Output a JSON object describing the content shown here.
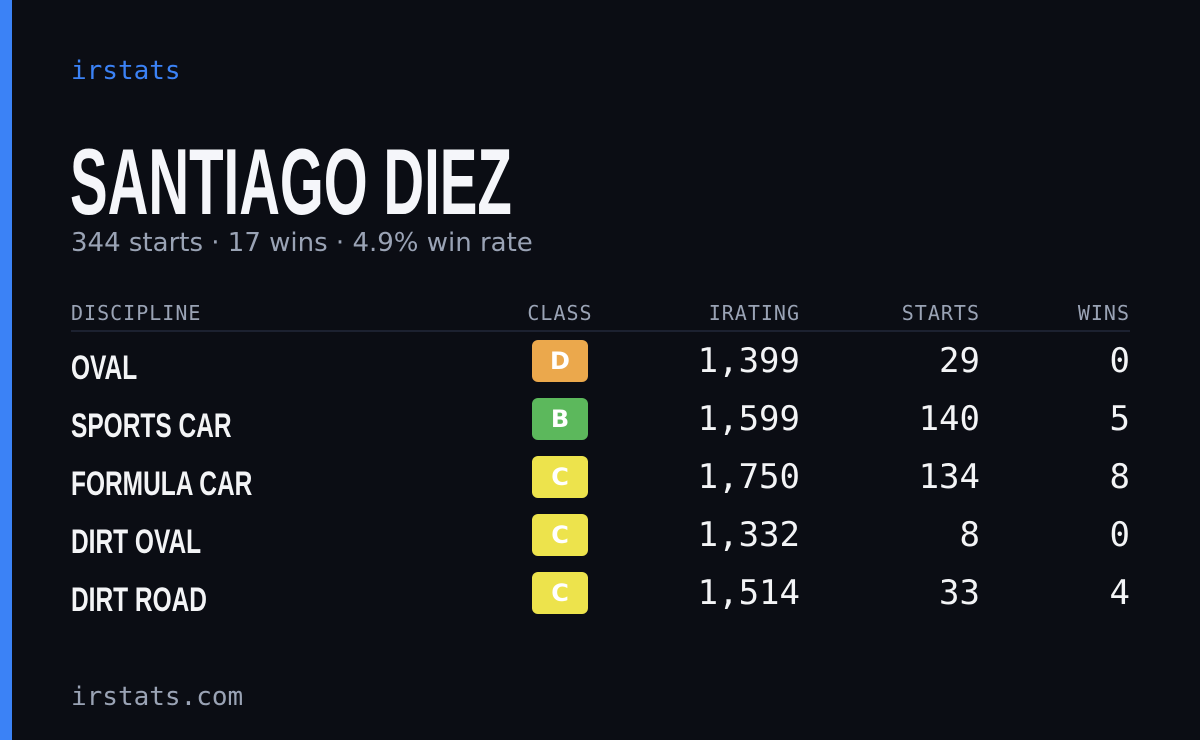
{
  "brand": "irstats",
  "title": "SANTIAGO DIEZ",
  "subtitle": "344 starts · 17 wins · 4.9% win rate",
  "table": {
    "columns": [
      "DISCIPLINE",
      "CLASS",
      "IRATING",
      "STARTS",
      "WINS"
    ],
    "rows": [
      [
        "OVAL",
        "D",
        "1,399",
        "29",
        "0"
      ],
      [
        "SPORTS CAR",
        "B",
        "1,599",
        "140",
        "5"
      ],
      [
        "FORMULA CAR",
        "C",
        "1,750",
        "134",
        "8"
      ],
      [
        "DIRT OVAL",
        "C",
        "1,332",
        "8",
        "0"
      ],
      [
        "DIRT ROAD",
        "C",
        "1,514",
        "33",
        "4"
      ]
    ],
    "class_colors": {
      "D": "#eba84c",
      "B": "#5cb85c",
      "C": "#ede34c"
    }
  },
  "footer": "irstats.com"
}
